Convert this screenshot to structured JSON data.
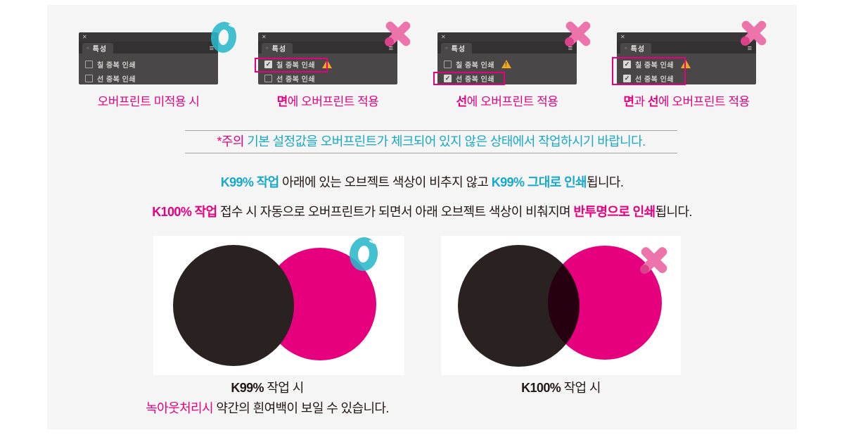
{
  "colors": {
    "magenta": "#e6007e",
    "teal": "#18a9c8",
    "pink_badge": "#ec74ab",
    "dark": "#231815",
    "warning_yellow": "#f2a81c",
    "panel_gray": "#4a4748",
    "background_gray": "#f5f5f6"
  },
  "icons": {
    "close": "✕",
    "collapse": "«",
    "menu": "≡",
    "tab_dot": "○",
    "check": "✓",
    "warning": "!",
    "correct": "O",
    "wrong": "X"
  },
  "panels": [
    {
      "tab": "특성",
      "rows": [
        {
          "label": "칠 중복 인쇄",
          "checked": false,
          "warning": false
        },
        {
          "label": "선 중복 인쇄",
          "checked": false,
          "warning": false
        }
      ],
      "badge": "correct",
      "caption": [
        {
          "text": "오버프린트 미적용 시"
        }
      ]
    },
    {
      "tab": "특성",
      "rows": [
        {
          "label": "칠 중복 인쇄",
          "checked": true,
          "warning": true
        },
        {
          "label": "선 중복 인쇄",
          "checked": false,
          "warning": false
        }
      ],
      "badge": "wrong",
      "highlight": "row1",
      "caption": [
        {
          "text": "면",
          "hl": true
        },
        {
          "text": "에 오버프린트 적용"
        }
      ]
    },
    {
      "tab": "특성",
      "rows": [
        {
          "label": "칠 중복 인쇄",
          "checked": false,
          "warning": true
        },
        {
          "label": "선 중복 인쇄",
          "checked": true,
          "warning": false
        }
      ],
      "badge": "wrong",
      "highlight": "row2",
      "caption": [
        {
          "text": "선",
          "hl": true
        },
        {
          "text": "에 오버프린트 적용"
        }
      ]
    },
    {
      "tab": "특성",
      "rows": [
        {
          "label": "칠 중복 인쇄",
          "checked": true,
          "warning": true
        },
        {
          "label": "선 중복 인쇄",
          "checked": true,
          "warning": false
        }
      ],
      "badge": "wrong",
      "highlight": "both",
      "caption": [
        {
          "text": "면",
          "hl": true
        },
        {
          "text": "과 "
        },
        {
          "text": "선",
          "hl": true
        },
        {
          "text": "에 오버프린트 적용"
        }
      ]
    }
  ],
  "notice": [
    {
      "text": "*주의 ",
      "hl": true
    },
    {
      "text": "기본 설정값을 오버프린트가 체크되어 있지 않은 상태에서 작업하시기 바랍니다."
    }
  ],
  "line1": [
    {
      "text": "K99% 작업",
      "hl": true
    },
    {
      "text": " 아래에 있는 오브젝트 색상이 비추지 않고 "
    },
    {
      "text": "K99% 그대로 인쇄",
      "hl": true
    },
    {
      "text": "됩니다."
    }
  ],
  "line2": [
    {
      "text": "K100% 작업",
      "hl": true
    },
    {
      "text": " 접수 시 자동으로 오버프린트가 되면서 아래 오브젝트 색상이 비춰지며 "
    },
    {
      "text": "반투명으로 인쇄",
      "hl": true
    },
    {
      "text": "됩니다."
    }
  ],
  "demos": [
    {
      "badge": "correct",
      "caption_line1": [
        {
          "text": "K99%",
          "hl": true
        },
        {
          "text": " 작업 시"
        }
      ],
      "caption_line2": [
        {
          "text": "녹아웃처리시",
          "hl": true
        },
        {
          "text": " 약간의 흰여백이 보일 수 있습니다."
        }
      ]
    },
    {
      "badge": "wrong",
      "caption_line1": [
        {
          "text": "K100%",
          "hl": true
        },
        {
          "text": " 작업 시"
        }
      ],
      "caption_line2": []
    }
  ]
}
